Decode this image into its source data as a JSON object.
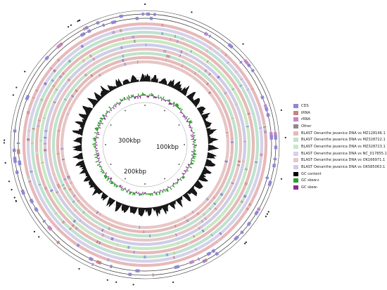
{
  "scale_labels": [
    "100kbp",
    "200kbp",
    "300kbp"
  ],
  "legend": [
    {
      "label": "CDS",
      "color": "#8f86d6"
    },
    {
      "label": "tRNA",
      "color": "#c2867e"
    },
    {
      "label": "rRNA",
      "color": "#c386c4"
    },
    {
      "label": "Other",
      "color": "#8b8b8b"
    },
    {
      "label": "BLAST Oenanthe javanica  DNA vs MZ128146.1",
      "color": "#e7b9b9"
    },
    {
      "label": "BLAST Oenanthe javanica  DNA vs MZ328722.1",
      "color": "#bfe2cf"
    },
    {
      "label": "BLAST Oenanthe javanica  DNA vs MZ328723.1",
      "color": "#c9e8c4"
    },
    {
      "label": "BLAST Oenanthe javanica  DNA vs NC_017855.1",
      "color": "#d6d1ea"
    },
    {
      "label": "BLAST Oenanthe javanica  DNA vs OK166971.1",
      "color": "#e7c6c6"
    },
    {
      "label": "BLAST Oenanthe javanica  DNA vs OK585063.1",
      "color": "#cfcce8"
    },
    {
      "label": "GC content",
      "color": "#000000"
    },
    {
      "label": "GC skew+",
      "color": "#2e9a2e"
    },
    {
      "label": "GC skew-",
      "color": "#8a2a9a"
    }
  ]
}
